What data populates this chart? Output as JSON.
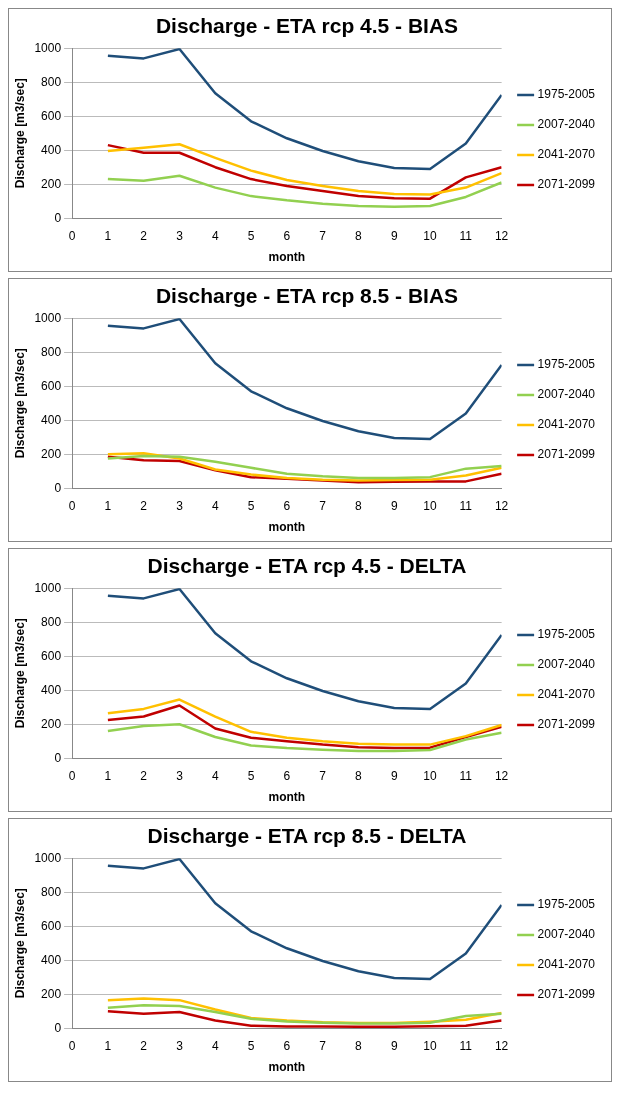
{
  "chart_data": [
    {
      "type": "line",
      "title": "Discharge - ETA rcp 4.5 - BIAS",
      "xlabel": "month",
      "ylabel": "Discharge [m3/sec]",
      "x": [
        1,
        2,
        3,
        4,
        5,
        6,
        7,
        8,
        9,
        10,
        11,
        12
      ],
      "xlim": [
        0,
        12
      ],
      "xticks": [
        0,
        1,
        2,
        3,
        4,
        5,
        6,
        7,
        8,
        9,
        10,
        11,
        12
      ],
      "ylim": [
        0,
        1000
      ],
      "yticks": [
        0,
        200,
        400,
        600,
        800,
        1000
      ],
      "grid": "y",
      "legend": "right",
      "marker": "none",
      "series": [
        {
          "name": "1975-2005",
          "color": "#1f4e79",
          "values": [
            955,
            940,
            995,
            735,
            570,
            470,
            395,
            335,
            295,
            290,
            440,
            725
          ]
        },
        {
          "name": "2007-2040",
          "color": "#92d050",
          "values": [
            230,
            220,
            250,
            180,
            130,
            105,
            85,
            72,
            68,
            72,
            125,
            210
          ]
        },
        {
          "name": "2041-2070",
          "color": "#ffc000",
          "values": [
            395,
            415,
            435,
            355,
            280,
            225,
            190,
            160,
            142,
            140,
            180,
            265
          ]
        },
        {
          "name": "2071-2099",
          "color": "#c00000",
          "values": [
            430,
            385,
            385,
            300,
            230,
            190,
            160,
            130,
            118,
            115,
            240,
            300
          ]
        }
      ]
    },
    {
      "type": "line",
      "title": "Discharge - ETA rcp 8.5 - BIAS",
      "xlabel": "month",
      "ylabel": "Discharge [m3/sec]",
      "x": [
        1,
        2,
        3,
        4,
        5,
        6,
        7,
        8,
        9,
        10,
        11,
        12
      ],
      "xlim": [
        0,
        12
      ],
      "xticks": [
        0,
        1,
        2,
        3,
        4,
        5,
        6,
        7,
        8,
        9,
        10,
        11,
        12
      ],
      "ylim": [
        0,
        1000
      ],
      "yticks": [
        0,
        200,
        400,
        600,
        800,
        1000
      ],
      "grid": "y",
      "legend": "right",
      "marker": "none",
      "series": [
        {
          "name": "1975-2005",
          "color": "#1f4e79",
          "values": [
            955,
            940,
            995,
            735,
            570,
            470,
            395,
            335,
            295,
            290,
            440,
            725
          ]
        },
        {
          "name": "2007-2040",
          "color": "#92d050",
          "values": [
            175,
            190,
            185,
            155,
            120,
            85,
            70,
            60,
            60,
            65,
            115,
            130
          ]
        },
        {
          "name": "2041-2070",
          "color": "#ffc000",
          "values": [
            200,
            205,
            175,
            110,
            80,
            60,
            50,
            45,
            48,
            50,
            75,
            120
          ]
        },
        {
          "name": "2071-2099",
          "color": "#c00000",
          "values": [
            185,
            165,
            160,
            105,
            65,
            55,
            45,
            35,
            38,
            40,
            40,
            85
          ]
        }
      ]
    },
    {
      "type": "line",
      "title": "Discharge - ETA rcp 4.5 - DELTA",
      "xlabel": "month",
      "ylabel": "Discharge [m3/sec]",
      "x": [
        1,
        2,
        3,
        4,
        5,
        6,
        7,
        8,
        9,
        10,
        11,
        12
      ],
      "xlim": [
        0,
        12
      ],
      "xticks": [
        0,
        1,
        2,
        3,
        4,
        5,
        6,
        7,
        8,
        9,
        10,
        11,
        12
      ],
      "ylim": [
        0,
        1000
      ],
      "yticks": [
        0,
        200,
        400,
        600,
        800,
        1000
      ],
      "grid": "y",
      "legend": "right",
      "marker": "none",
      "series": [
        {
          "name": "1975-2005",
          "color": "#1f4e79",
          "values": [
            955,
            940,
            995,
            735,
            570,
            470,
            395,
            335,
            295,
            290,
            440,
            725
          ]
        },
        {
          "name": "2007-2040",
          "color": "#92d050",
          "values": [
            160,
            190,
            200,
            125,
            75,
            60,
            50,
            42,
            42,
            48,
            110,
            150
          ]
        },
        {
          "name": "2041-2070",
          "color": "#ffc000",
          "values": [
            265,
            290,
            345,
            245,
            155,
            120,
            100,
            85,
            80,
            80,
            130,
            195
          ]
        },
        {
          "name": "2071-2099",
          "color": "#c00000",
          "values": [
            225,
            245,
            310,
            175,
            120,
            100,
            80,
            65,
            60,
            62,
            125,
            185
          ]
        }
      ]
    },
    {
      "type": "line",
      "title": "Discharge - ETA rcp 8.5 - DELTA",
      "xlabel": "month",
      "ylabel": "Discharge [m3/sec]",
      "x": [
        1,
        2,
        3,
        4,
        5,
        6,
        7,
        8,
        9,
        10,
        11,
        12
      ],
      "xlim": [
        0,
        12
      ],
      "xticks": [
        0,
        1,
        2,
        3,
        4,
        5,
        6,
        7,
        8,
        9,
        10,
        11,
        12
      ],
      "ylim": [
        0,
        1000
      ],
      "yticks": [
        0,
        200,
        400,
        600,
        800,
        1000
      ],
      "grid": "y",
      "legend": "right",
      "marker": "none",
      "series": [
        {
          "name": "1975-2005",
          "color": "#1f4e79",
          "values": [
            955,
            940,
            995,
            735,
            570,
            470,
            395,
            335,
            295,
            290,
            440,
            725
          ]
        },
        {
          "name": "2007-2040",
          "color": "#92d050",
          "values": [
            120,
            135,
            130,
            95,
            55,
            40,
            32,
            28,
            28,
            32,
            72,
            85
          ]
        },
        {
          "name": "2041-2070",
          "color": "#ffc000",
          "values": [
            165,
            175,
            165,
            110,
            60,
            45,
            35,
            30,
            30,
            38,
            50,
            90
          ]
        },
        {
          "name": "2071-2099",
          "color": "#c00000",
          "values": [
            100,
            85,
            95,
            45,
            15,
            10,
            10,
            8,
            8,
            12,
            15,
            45
          ]
        }
      ]
    }
  ]
}
